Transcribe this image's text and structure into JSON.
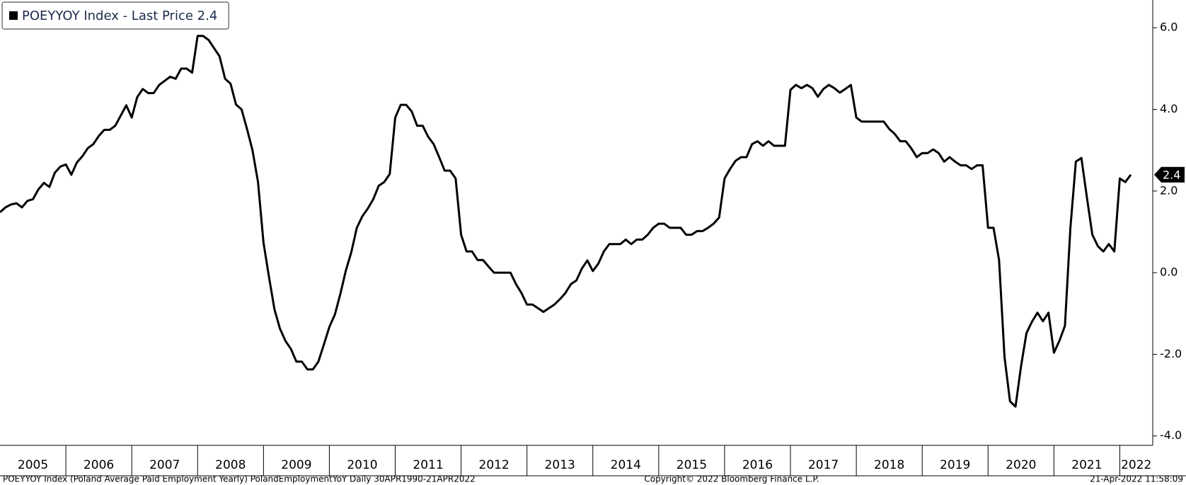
{
  "chart_data": {
    "type": "line",
    "series": [
      {
        "name": "POEYYOY Index - Last Price 2.4",
        "color": "#000000",
        "values": [
          1.48,
          1.6,
          1.67,
          1.7,
          1.6,
          1.76,
          1.8,
          2.04,
          2.2,
          2.1,
          2.45,
          2.6,
          2.65,
          2.4,
          2.7,
          2.85,
          3.05,
          3.15,
          3.35,
          3.5,
          3.5,
          3.6,
          3.85,
          4.1,
          3.8,
          4.3,
          4.5,
          4.4,
          4.4,
          4.6,
          4.7,
          4.8,
          4.75,
          5.0,
          5.0,
          4.9,
          5.8,
          5.8,
          5.7,
          5.5,
          5.3,
          4.75,
          4.63,
          4.12,
          4.0,
          3.52,
          3.0,
          2.22,
          0.74,
          -0.1,
          -0.9,
          -1.37,
          -1.67,
          -1.87,
          -2.18,
          -2.18,
          -2.37,
          -2.37,
          -2.18,
          -1.76,
          -1.33,
          -1.03,
          -0.52,
          0.05,
          0.5,
          1.1,
          1.38,
          1.57,
          1.8,
          2.13,
          2.22,
          2.42,
          3.8,
          4.11,
          4.11,
          3.95,
          3.6,
          3.6,
          3.33,
          3.15,
          2.83,
          2.5,
          2.5,
          2.31,
          0.93,
          0.52,
          0.52,
          0.31,
          0.31,
          0.15,
          0,
          0,
          0,
          0,
          -0.28,
          -0.5,
          -0.78,
          -0.78,
          -0.87,
          -0.96,
          -0.87,
          -0.78,
          -0.65,
          -0.5,
          -0.28,
          -0.19,
          0.1,
          0.3,
          0.04,
          0.22,
          0.52,
          0.7,
          0.7,
          0.7,
          0.81,
          0.7,
          0.81,
          0.81,
          0.93,
          1.1,
          1.2,
          1.2,
          1.1,
          1.1,
          1.1,
          0.93,
          0.93,
          1.02,
          1.02,
          1.1,
          1.2,
          1.35,
          2.31,
          2.54,
          2.74,
          2.83,
          2.83,
          3.15,
          3.22,
          3.11,
          3.22,
          3.11,
          3.11,
          3.11,
          4.48,
          4.6,
          4.52,
          4.6,
          4.52,
          4.31,
          4.5,
          4.6,
          4.52,
          4.41,
          4.5,
          4.6,
          3.8,
          3.7,
          3.7,
          3.7,
          3.7,
          3.7,
          3.52,
          3.4,
          3.22,
          3.22,
          3.05,
          2.83,
          2.93,
          2.93,
          3.02,
          2.93,
          2.72,
          2.83,
          2.72,
          2.63,
          2.63,
          2.54,
          2.63,
          2.63,
          1.1,
          1.1,
          0.31,
          -2.07,
          -3.15,
          -3.28,
          -2.3,
          -1.48,
          -1.2,
          -0.98,
          -1.19,
          -0.98,
          -1.96,
          -1.67,
          -1.3,
          1.1,
          2.72,
          2.81,
          1.85,
          0.93,
          0.65,
          0.52,
          0.7,
          0.52,
          2.31,
          2.22,
          2.4
        ]
      }
    ],
    "x": [
      2005,
      2005.083,
      2005.167,
      2005.25,
      2005.333,
      2005.417,
      2005.5,
      2005.583,
      2005.667,
      2005.75,
      2005.833,
      2005.917,
      2006,
      2006.083,
      2006.167,
      2006.25,
      2006.333,
      2006.417,
      2006.5,
      2006.583,
      2006.667,
      2006.75,
      2006.833,
      2006.917,
      2007,
      2007.083,
      2007.167,
      2007.25,
      2007.333,
      2007.417,
      2007.5,
      2007.583,
      2007.667,
      2007.75,
      2007.833,
      2007.917,
      2008,
      2008.083,
      2008.167,
      2008.25,
      2008.333,
      2008.417,
      2008.5,
      2008.583,
      2008.667,
      2008.75,
      2008.833,
      2008.917,
      2009,
      2009.083,
      2009.167,
      2009.25,
      2009.333,
      2009.417,
      2009.5,
      2009.583,
      2009.667,
      2009.75,
      2009.833,
      2009.917,
      2010,
      2010.083,
      2010.167,
      2010.25,
      2010.333,
      2010.417,
      2010.5,
      2010.583,
      2010.667,
      2010.75,
      2010.833,
      2010.917,
      2011,
      2011.083,
      2011.167,
      2011.25,
      2011.333,
      2011.417,
      2011.5,
      2011.583,
      2011.667,
      2011.75,
      2011.833,
      2011.917,
      2012,
      2012.083,
      2012.167,
      2012.25,
      2012.333,
      2012.417,
      2012.5,
      2012.583,
      2012.667,
      2012.75,
      2012.833,
      2012.917,
      2013,
      2013.083,
      2013.167,
      2013.25,
      2013.333,
      2013.417,
      2013.5,
      2013.583,
      2013.667,
      2013.75,
      2013.833,
      2013.917,
      2014,
      2014.083,
      2014.167,
      2014.25,
      2014.333,
      2014.417,
      2014.5,
      2014.583,
      2014.667,
      2014.75,
      2014.833,
      2014.917,
      2015,
      2015.083,
      2015.167,
      2015.25,
      2015.333,
      2015.417,
      2015.5,
      2015.583,
      2015.667,
      2015.75,
      2015.833,
      2015.917,
      2016,
      2016.083,
      2016.167,
      2016.25,
      2016.333,
      2016.417,
      2016.5,
      2016.583,
      2016.667,
      2016.75,
      2016.833,
      2016.917,
      2017,
      2017.083,
      2017.167,
      2017.25,
      2017.333,
      2017.417,
      2017.5,
      2017.583,
      2017.667,
      2017.75,
      2017.833,
      2017.917,
      2018,
      2018.083,
      2018.167,
      2018.25,
      2018.333,
      2018.417,
      2018.5,
      2018.583,
      2018.667,
      2018.75,
      2018.833,
      2018.917,
      2019,
      2019.083,
      2019.167,
      2019.25,
      2019.333,
      2019.417,
      2019.5,
      2019.583,
      2019.667,
      2019.75,
      2019.833,
      2019.917,
      2020,
      2020.083,
      2020.167,
      2020.25,
      2020.333,
      2020.417,
      2020.5,
      2020.583,
      2020.667,
      2020.75,
      2020.833,
      2020.917,
      2021,
      2021.083,
      2021.167,
      2021.25,
      2021.333,
      2021.417,
      2021.5,
      2021.583,
      2021.667,
      2021.75,
      2021.833,
      2021.917,
      2022,
      2022.083,
      2022.167
    ],
    "xlim": [
      2005,
      2022.5
    ],
    "xticks": [
      2005,
      2006,
      2007,
      2008,
      2009,
      2010,
      2011,
      2012,
      2013,
      2014,
      2015,
      2016,
      2017,
      2018,
      2019,
      2020,
      2021,
      2022
    ],
    "ylim": [
      -4.23,
      6.68
    ],
    "yticks": [
      {
        "value": 6,
        "label": "6.0"
      },
      {
        "value": 4,
        "label": "4.0"
      },
      {
        "value": 2,
        "label": "2.0"
      },
      {
        "value": 0,
        "label": "0.0"
      },
      {
        "value": -2,
        "label": "-2.0"
      },
      {
        "value": -4,
        "label": "-4.0"
      }
    ],
    "last_price": 2.4,
    "legend": "upper left",
    "grid": false
  },
  "footer": {
    "left": "POEYYOY Index (Poland Average Paid Employment Yearly) PolandEmploymentYoY  Daily 30APR1990-21APR2022",
    "center": "Copyright© 2022 Bloomberg Finance L.P.",
    "right": "21-Apr-2022 11:58:09"
  }
}
